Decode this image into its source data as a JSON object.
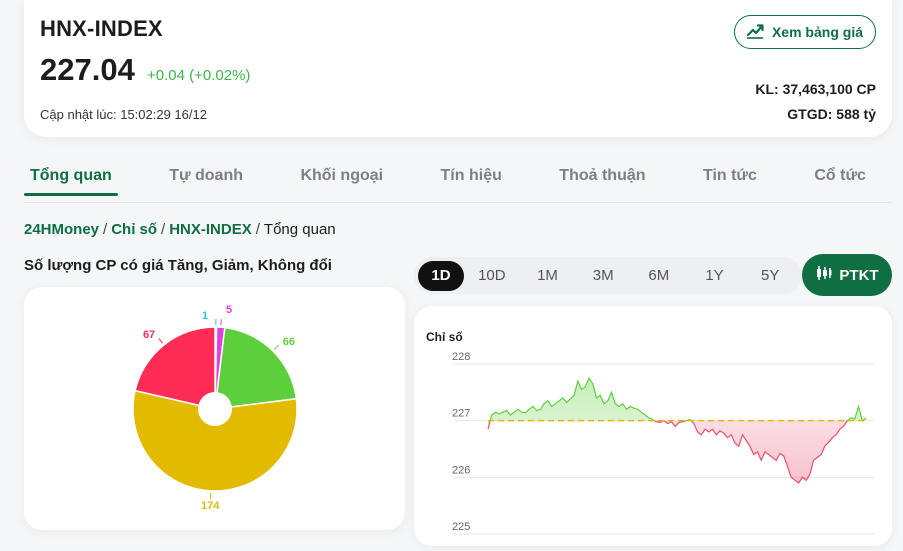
{
  "header": {
    "index_name": "HNX-INDEX",
    "value": "227.04",
    "change": "+0.04 (+0.02%)",
    "updated": "Cập nhật lúc: 15:02:29 16/12",
    "price_button": "Xem bảng giá",
    "volume": "KL: 37,463,100 CP",
    "turnover": "GTGD: 588 tỷ"
  },
  "tabs": [
    "Tổng quan",
    "Tự doanh",
    "Khối ngoại",
    "Tín hiệu",
    "Thoả thuận",
    "Tin tức",
    "Cổ tức"
  ],
  "active_tab": 0,
  "breadcrumb": {
    "home": "24HMoney",
    "section": "Chỉ số",
    "index": "HNX-INDEX",
    "current": "Tổng quan"
  },
  "breakdown": {
    "title": "Số lượng CP có giá Tăng, Giảm, Không đổi",
    "chart_data": {
      "type": "pie",
      "slices": [
        {
          "label": "1",
          "value": 1,
          "color": "#28c8c8"
        },
        {
          "label": "5",
          "value": 5,
          "color": "#e040e0"
        },
        {
          "label": "66",
          "value": 66,
          "color": "#5ecf3c"
        },
        {
          "label": "174",
          "value": 174,
          "color": "#e2bb00"
        },
        {
          "label": "67",
          "value": 67,
          "color": "#ff2d55"
        }
      ]
    }
  },
  "ranges": [
    "1D",
    "10D",
    "1M",
    "3M",
    "6M",
    "1Y",
    "5Y"
  ],
  "active_range": 0,
  "ptkt_label": "PTKT",
  "price_chart": {
    "label": "Chỉ số",
    "chart_data": {
      "type": "line",
      "ylabel": "Chỉ số",
      "ylim": [
        225,
        228
      ],
      "yticks": [
        "228",
        "227",
        "226",
        "225"
      ],
      "reference": 227.0,
      "up_color": "#5ecf3c",
      "down_color": "#e8506e",
      "ref_color": "#e2bb00",
      "values": [
        226.85,
        227.1,
        227.15,
        227.12,
        227.15,
        227.18,
        227.1,
        227.15,
        227.2,
        227.15,
        227.14,
        227.2,
        227.25,
        227.18,
        227.2,
        227.3,
        227.35,
        227.25,
        227.3,
        227.35,
        227.4,
        227.32,
        227.38,
        227.45,
        227.7,
        227.55,
        227.6,
        227.75,
        227.65,
        227.4,
        227.45,
        227.3,
        227.35,
        227.5,
        227.3,
        227.25,
        227.3,
        227.2,
        227.25,
        227.22,
        227.2,
        227.15,
        227.1,
        227.05,
        227.02,
        226.98,
        226.97,
        227.0,
        226.95,
        226.98,
        226.9,
        226.97,
        226.98,
        227.0,
        227.02,
        226.95,
        226.8,
        226.75,
        226.85,
        226.8,
        226.85,
        226.75,
        226.82,
        226.78,
        226.7,
        226.75,
        226.6,
        226.55,
        226.75,
        226.65,
        226.55,
        226.4,
        226.45,
        226.3,
        226.45,
        226.4,
        226.35,
        226.3,
        226.42,
        226.38,
        226.2,
        226.0,
        225.95,
        225.9,
        226.0,
        225.95,
        226.05,
        226.3,
        226.35,
        226.4,
        226.55,
        226.62,
        226.7,
        226.75,
        226.85,
        226.9,
        227.0,
        227.05,
        227.03,
        227.25,
        227.0,
        227.05
      ]
    }
  }
}
